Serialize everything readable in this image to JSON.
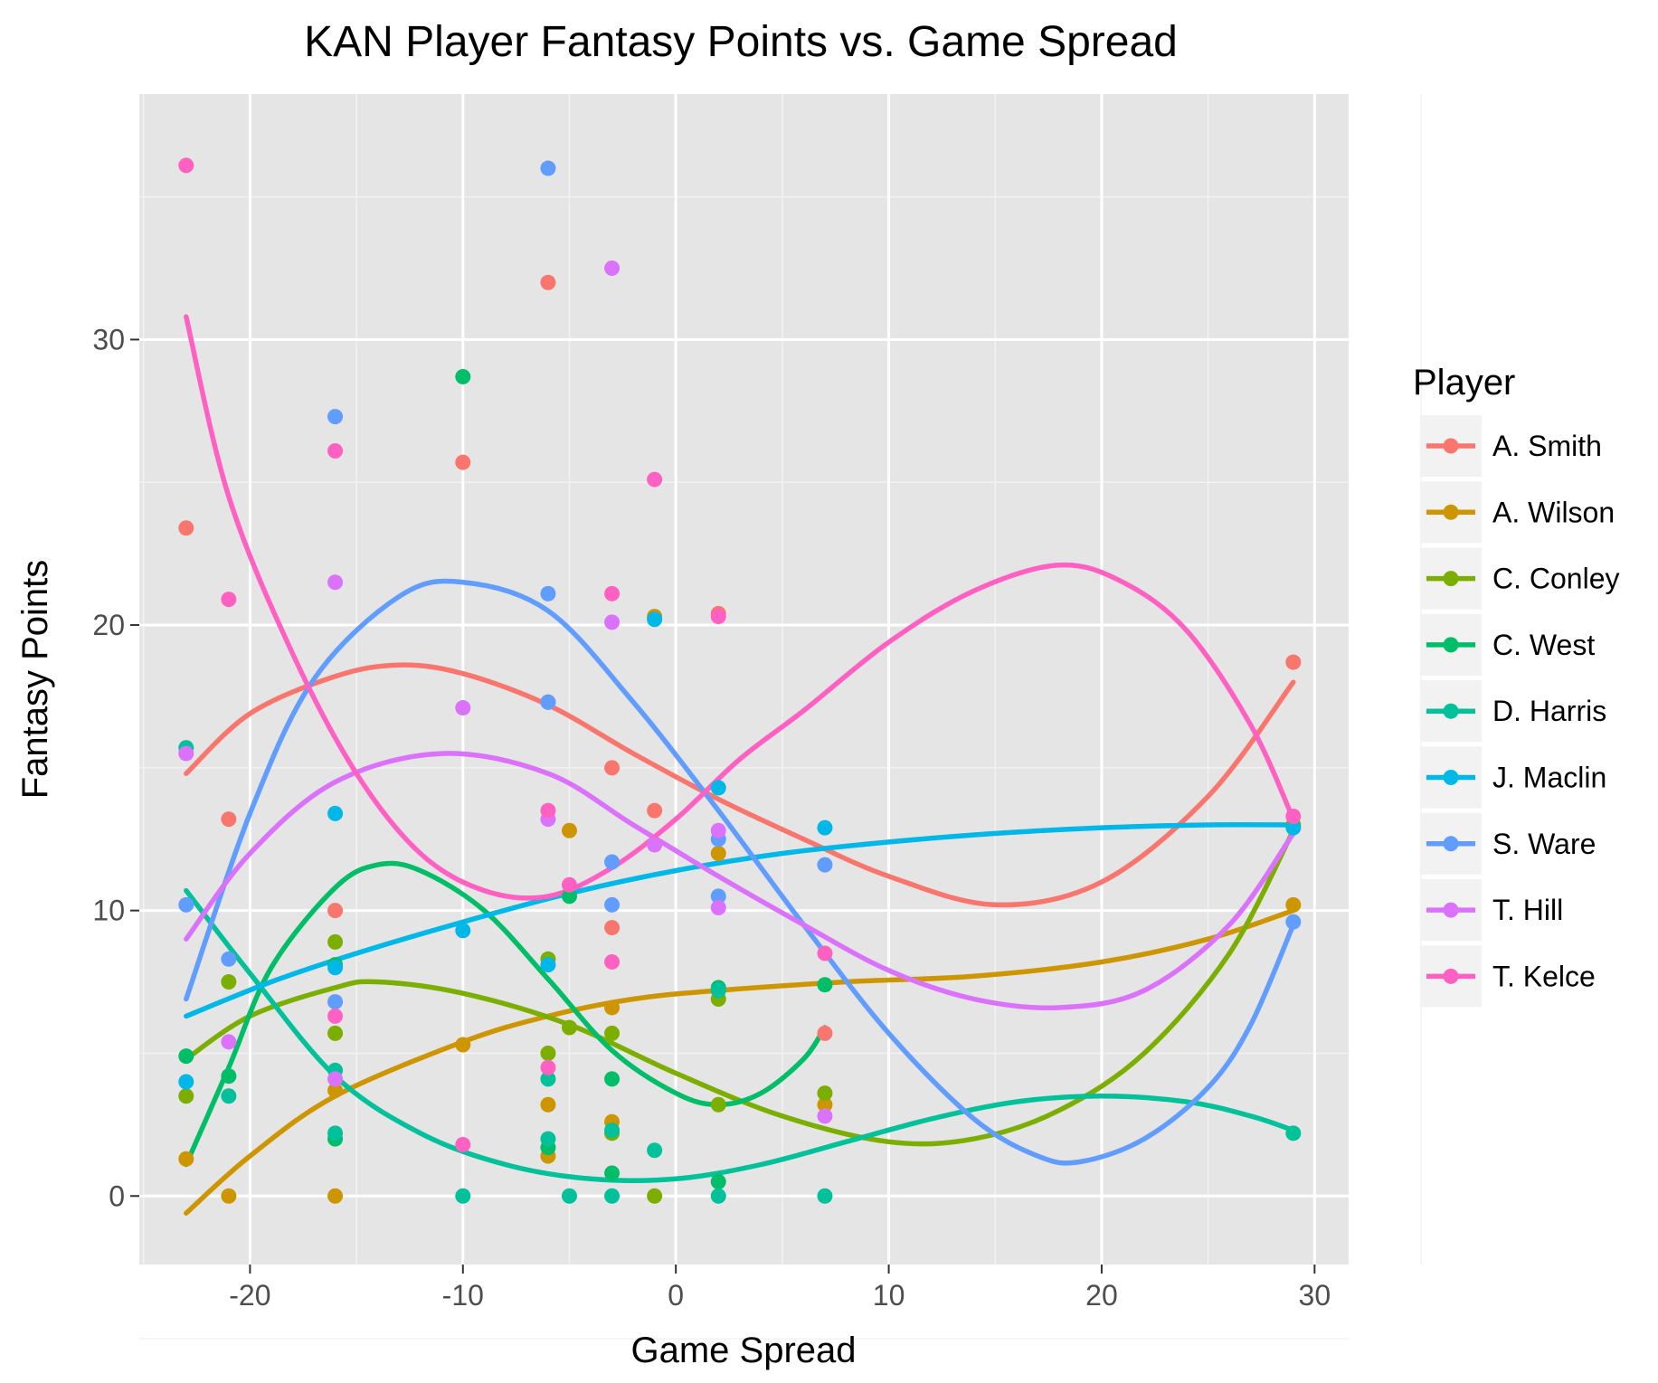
{
  "chart_data": {
    "type": "scatter",
    "title": "KAN Player Fantasy Points vs. Game Spread",
    "xlabel": "Game Spread",
    "ylabel": "Fantasy Points",
    "xlim": [
      -25.2,
      31.6
    ],
    "ylim": [
      -2.4,
      38.6
    ],
    "x_ticks": [
      -20,
      -10,
      0,
      10,
      20,
      30
    ],
    "y_ticks": [
      0,
      10,
      20,
      30
    ],
    "grid": true,
    "legend": {
      "title": "Player",
      "position": "right"
    },
    "series": [
      {
        "name": "A. Smith",
        "color": "#F8766D",
        "points": [
          [
            -23,
            23.4
          ],
          [
            -21,
            13.2
          ],
          [
            -16,
            10.0
          ],
          [
            -10,
            25.7
          ],
          [
            -6,
            32.0
          ],
          [
            -6,
            17.3
          ],
          [
            -3,
            15.0
          ],
          [
            -3,
            9.4
          ],
          [
            -1,
            13.5
          ],
          [
            2,
            20.4
          ],
          [
            7,
            5.7
          ],
          [
            29,
            18.7
          ]
        ],
        "trend": [
          [
            -23,
            14.8
          ],
          [
            -20,
            16.9
          ],
          [
            -16,
            18.2
          ],
          [
            -13,
            18.6
          ],
          [
            -10,
            18.3
          ],
          [
            -6,
            17.2
          ],
          [
            -2,
            15.5
          ],
          [
            2,
            13.9
          ],
          [
            6,
            12.5
          ],
          [
            10,
            11.2
          ],
          [
            15,
            10.2
          ],
          [
            20,
            11.0
          ],
          [
            25,
            14.0
          ],
          [
            29,
            18.0
          ]
        ]
      },
      {
        "name": "A. Wilson",
        "color": "#CD9600",
        "points": [
          [
            -23,
            1.3
          ],
          [
            -21,
            0.0
          ],
          [
            -16,
            3.7
          ],
          [
            -16,
            0.0
          ],
          [
            -10,
            5.3
          ],
          [
            -6,
            3.2
          ],
          [
            -6,
            1.4
          ],
          [
            -5,
            12.8
          ],
          [
            -3,
            6.6
          ],
          [
            -3,
            2.6
          ],
          [
            -1,
            20.3
          ],
          [
            2,
            12.0
          ],
          [
            7,
            3.2
          ],
          [
            29,
            10.2
          ]
        ],
        "trend": [
          [
            -23,
            -0.6
          ],
          [
            -20,
            1.4
          ],
          [
            -16,
            3.5
          ],
          [
            -10,
            5.4
          ],
          [
            -6,
            6.3
          ],
          [
            -2,
            6.9
          ],
          [
            2,
            7.2
          ],
          [
            8,
            7.5
          ],
          [
            14,
            7.7
          ],
          [
            20,
            8.2
          ],
          [
            25,
            9.0
          ],
          [
            29,
            10.0
          ]
        ]
      },
      {
        "name": "C. Conley",
        "color": "#7CAE00",
        "points": [
          [
            -23,
            3.5
          ],
          [
            -21,
            7.5
          ],
          [
            -16,
            8.9
          ],
          [
            -16,
            5.7
          ],
          [
            -6,
            8.3
          ],
          [
            -6,
            5.0
          ],
          [
            -5,
            5.9
          ],
          [
            -3,
            5.7
          ],
          [
            -3,
            2.2
          ],
          [
            -1,
            0.0
          ],
          [
            2,
            3.2
          ],
          [
            2,
            6.9
          ],
          [
            7,
            3.6
          ],
          [
            29,
            13.0
          ]
        ],
        "trend": [
          [
            -23,
            4.8
          ],
          [
            -20,
            6.3
          ],
          [
            -16,
            7.3
          ],
          [
            -14,
            7.5
          ],
          [
            -10,
            7.1
          ],
          [
            -5,
            6.0
          ],
          [
            0,
            4.3
          ],
          [
            5,
            2.8
          ],
          [
            10,
            1.9
          ],
          [
            14,
            2.0
          ],
          [
            18,
            3.0
          ],
          [
            22,
            5.0
          ],
          [
            26,
            8.5
          ],
          [
            29,
            12.8
          ]
        ]
      },
      {
        "name": "C. West",
        "color": "#00BE67",
        "points": [
          [
            -23,
            4.9
          ],
          [
            -21,
            4.2
          ],
          [
            -16,
            8.1
          ],
          [
            -16,
            2.0
          ],
          [
            -10,
            28.7
          ],
          [
            -6,
            1.7
          ],
          [
            -5,
            10.5
          ],
          [
            -3,
            4.1
          ],
          [
            -3,
            0.8
          ],
          [
            2,
            7.3
          ],
          [
            2,
            0.5
          ],
          [
            7,
            7.4
          ]
        ],
        "trend": [
          [
            -23,
            1.1
          ],
          [
            -21,
            4.5
          ],
          [
            -19,
            8.0
          ],
          [
            -16,
            10.8
          ],
          [
            -14,
            11.6
          ],
          [
            -12,
            11.4
          ],
          [
            -9,
            10.0
          ],
          [
            -6,
            7.6
          ],
          [
            -3,
            5.1
          ],
          [
            0,
            3.6
          ],
          [
            2,
            3.2
          ],
          [
            4,
            3.6
          ],
          [
            6,
            4.8
          ],
          [
            7,
            5.9
          ]
        ]
      },
      {
        "name": "D. Harris",
        "color": "#00C19A",
        "points": [
          [
            -23,
            15.7
          ],
          [
            -21,
            3.5
          ],
          [
            -16,
            4.4
          ],
          [
            -16,
            2.2
          ],
          [
            -10,
            0.0
          ],
          [
            -6,
            4.1
          ],
          [
            -6,
            2.0
          ],
          [
            -5,
            0.0
          ],
          [
            -3,
            2.3
          ],
          [
            -3,
            0.0
          ],
          [
            -1,
            1.6
          ],
          [
            2,
            7.2
          ],
          [
            2,
            0.0
          ],
          [
            7,
            0.0
          ],
          [
            29,
            2.2
          ]
        ],
        "trend": [
          [
            -23,
            10.7
          ],
          [
            -20,
            7.8
          ],
          [
            -16,
            4.2
          ],
          [
            -12,
            2.2
          ],
          [
            -8,
            1.1
          ],
          [
            -4,
            0.6
          ],
          [
            0,
            0.6
          ],
          [
            4,
            1.1
          ],
          [
            8,
            1.9
          ],
          [
            12,
            2.7
          ],
          [
            16,
            3.3
          ],
          [
            20,
            3.5
          ],
          [
            24,
            3.3
          ],
          [
            27,
            2.8
          ],
          [
            29,
            2.3
          ]
        ]
      },
      {
        "name": "J. Maclin",
        "color": "#00B8E7",
        "points": [
          [
            -23,
            4.0
          ],
          [
            -16,
            13.4
          ],
          [
            -16,
            8.0
          ],
          [
            -10,
            9.3
          ],
          [
            -6,
            8.1
          ],
          [
            -1,
            20.2
          ],
          [
            2,
            14.3
          ],
          [
            7,
            12.9
          ],
          [
            29,
            12.9
          ]
        ],
        "trend": [
          [
            -23,
            6.3
          ],
          [
            -19,
            7.5
          ],
          [
            -15,
            8.5
          ],
          [
            -10,
            9.6
          ],
          [
            -5,
            10.6
          ],
          [
            0,
            11.4
          ],
          [
            5,
            12.0
          ],
          [
            10,
            12.4
          ],
          [
            15,
            12.7
          ],
          [
            20,
            12.9
          ],
          [
            25,
            13.0
          ],
          [
            29,
            13.0
          ]
        ]
      },
      {
        "name": "S. Ware",
        "color": "#619CFF",
        "points": [
          [
            -23,
            10.2
          ],
          [
            -21,
            8.3
          ],
          [
            -16,
            27.3
          ],
          [
            -16,
            6.8
          ],
          [
            -6,
            36.0
          ],
          [
            -6,
            21.1
          ],
          [
            -6,
            17.3
          ],
          [
            -3,
            11.7
          ],
          [
            -3,
            10.2
          ],
          [
            2,
            12.5
          ],
          [
            2,
            10.5
          ],
          [
            7,
            11.6
          ],
          [
            29,
            9.6
          ]
        ],
        "trend": [
          [
            -23,
            6.9
          ],
          [
            -20,
            13.4
          ],
          [
            -17,
            18.1
          ],
          [
            -13,
            21.0
          ],
          [
            -10,
            21.5
          ],
          [
            -6,
            20.5
          ],
          [
            -2,
            17.3
          ],
          [
            2,
            13.5
          ],
          [
            6,
            9.5
          ],
          [
            10,
            5.7
          ],
          [
            14,
            2.7
          ],
          [
            17,
            1.4
          ],
          [
            19,
            1.2
          ],
          [
            22,
            2.0
          ],
          [
            25,
            3.8
          ],
          [
            27,
            6.0
          ],
          [
            29,
            9.5
          ]
        ]
      },
      {
        "name": "T. Hill",
        "color": "#DB72FB",
        "points": [
          [
            -23,
            15.5
          ],
          [
            -21,
            5.4
          ],
          [
            -16,
            21.5
          ],
          [
            -16,
            4.1
          ],
          [
            -10,
            17.1
          ],
          [
            -6,
            13.2
          ],
          [
            -3,
            32.5
          ],
          [
            -3,
            20.1
          ],
          [
            -1,
            12.3
          ],
          [
            2,
            12.8
          ],
          [
            2,
            10.1
          ],
          [
            7,
            2.8
          ]
        ],
        "trend": [
          [
            -23,
            9.0
          ],
          [
            -20,
            12.0
          ],
          [
            -16,
            14.5
          ],
          [
            -11,
            15.5
          ],
          [
            -6,
            14.8
          ],
          [
            -2,
            13.0
          ],
          [
            2,
            11.2
          ],
          [
            6,
            9.5
          ],
          [
            10,
            7.9
          ],
          [
            14,
            6.9
          ],
          [
            18,
            6.6
          ],
          [
            22,
            7.2
          ],
          [
            26,
            9.5
          ],
          [
            29,
            12.7
          ]
        ]
      },
      {
        "name": "T. Kelce",
        "color": "#FF61C3",
        "points": [
          [
            -23,
            36.1
          ],
          [
            -21,
            20.9
          ],
          [
            -16,
            26.1
          ],
          [
            -16,
            6.3
          ],
          [
            -10,
            1.8
          ],
          [
            -6,
            13.5
          ],
          [
            -6,
            4.5
          ],
          [
            -5,
            10.9
          ],
          [
            -3,
            21.1
          ],
          [
            -3,
            8.2
          ],
          [
            -1,
            25.1
          ],
          [
            2,
            20.3
          ],
          [
            7,
            8.5
          ],
          [
            29,
            13.3
          ]
        ],
        "trend": [
          [
            -23,
            30.8
          ],
          [
            -21,
            24.5
          ],
          [
            -18,
            19.0
          ],
          [
            -15,
            14.8
          ],
          [
            -12,
            12.0
          ],
          [
            -9,
            10.7
          ],
          [
            -6,
            10.5
          ],
          [
            -3,
            11.5
          ],
          [
            0,
            13.2
          ],
          [
            3,
            15.3
          ],
          [
            6,
            17.0
          ],
          [
            10,
            19.4
          ],
          [
            14,
            21.2
          ],
          [
            18,
            22.1
          ],
          [
            21,
            21.5
          ],
          [
            24,
            19.8
          ],
          [
            27,
            16.5
          ],
          [
            29,
            13.2
          ]
        ]
      }
    ]
  }
}
